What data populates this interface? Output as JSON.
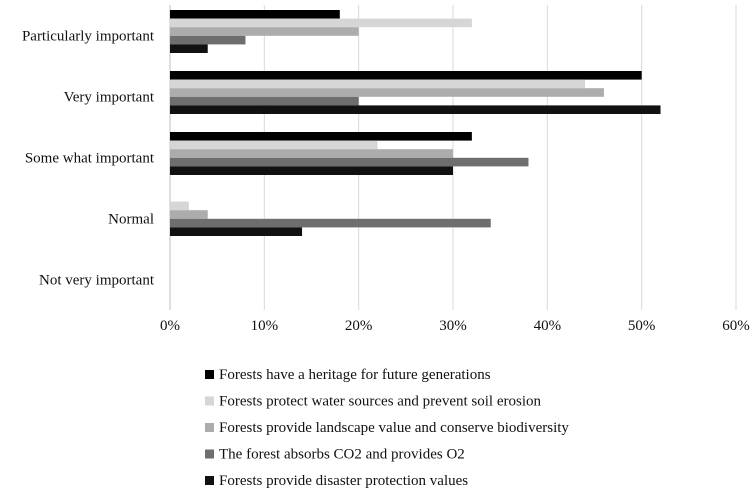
{
  "chart_data": {
    "type": "bar",
    "orientation": "horizontal",
    "title": "",
    "xlabel": "",
    "ylabel": "",
    "categories": [
      "Particularly important",
      "Very important",
      "Some what important",
      "Normal",
      "Not very important"
    ],
    "xlim": [
      0,
      60
    ],
    "x_ticks": [
      "0%",
      "10%",
      "20%",
      "30%",
      "40%",
      "50%",
      "60%"
    ],
    "x_unit": "%",
    "grid": "vertical",
    "legend_position": "bottom",
    "series": [
      {
        "name": "Forests have a heritage for future generations",
        "color": "#000000",
        "values": [
          18,
          50,
          32,
          0,
          0
        ]
      },
      {
        "name": "Forests protect water sources and prevent soil erosion",
        "color": "#d6d6d6",
        "values": [
          32,
          44,
          22,
          2,
          0
        ]
      },
      {
        "name": "Forests provide landscape value and conserve biodiversity",
        "color": "#acacac",
        "values": [
          20,
          46,
          30,
          4,
          0
        ]
      },
      {
        "name": "The forest absorbs CO2 and provides O2",
        "color": "#6e6e6e",
        "values": [
          8,
          20,
          38,
          34,
          0
        ]
      },
      {
        "name": "Forests provide disaster protection values",
        "color": "#111111",
        "values": [
          4,
          52,
          30,
          14,
          0
        ]
      }
    ]
  }
}
